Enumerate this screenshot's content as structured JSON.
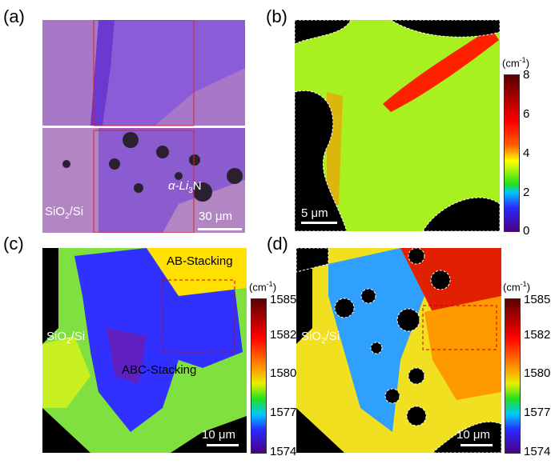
{
  "panels": {
    "a": {
      "label": "(a)",
      "substrate": "SiO",
      "substrate_sub": "2",
      "substrate_rest": "/Si",
      "material_pre": "α-Li",
      "material_sub": "3",
      "material_post": "N",
      "scale": "30 μm"
    },
    "b": {
      "label": "(b)",
      "scale": "5 μm",
      "unit": "(cm",
      "unit_sup": "-1",
      "unit_close": ")",
      "ticks": [
        "8",
        "6",
        "4",
        "2",
        "0"
      ]
    },
    "c": {
      "label": "(c)",
      "scale": "10 μm",
      "unit": "(cm",
      "unit_sup": "-1",
      "unit_close": ")",
      "ticks": [
        "1585",
        "1582",
        "1580",
        "1577",
        "1574"
      ],
      "region_ab": "AB-Stacking",
      "region_abc": "ABC-Stacking",
      "substrate": "SiO",
      "substrate_sub": "2",
      "substrate_rest": "/Si"
    },
    "d": {
      "label": "(d)",
      "scale": "10 μm",
      "unit": "(cm",
      "unit_sup": "-1",
      "unit_close": ")",
      "ticks": [
        "1585",
        "1582",
        "1580",
        "1577",
        "1574"
      ],
      "substrate": "SiO",
      "substrate_sub": "2",
      "substrate_rest": "/Si"
    }
  },
  "colormap": [
    "#4b0082",
    "#2a2aff",
    "#00c8ff",
    "#20e020",
    "#e8f000",
    "#ff9900",
    "#ff0000",
    "#5a0000"
  ]
}
